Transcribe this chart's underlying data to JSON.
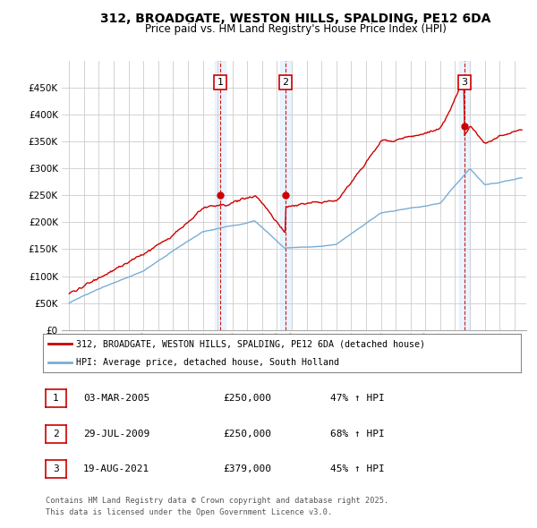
{
  "title_line1": "312, BROADGATE, WESTON HILLS, SPALDING, PE12 6DA",
  "title_line2": "Price paid vs. HM Land Registry's House Price Index (HPI)",
  "background_color": "#ffffff",
  "plot_bg_color": "#ffffff",
  "grid_color": "#cccccc",
  "red_line_color": "#cc0000",
  "blue_line_color": "#7aadd4",
  "annotation_box_edge_color": "#cc0000",
  "annotation_box_face_color": "#ffffff",
  "dashed_line_color": "#cc0000",
  "shaded_color": "#ddeeff",
  "ylim": [
    0,
    500000
  ],
  "yticks": [
    0,
    50000,
    100000,
    150000,
    200000,
    250000,
    300000,
    350000,
    400000,
    450000
  ],
  "annotations": [
    {
      "num": 1,
      "x_year": 2005.17,
      "price": 250000,
      "date": "03-MAR-2005",
      "pct": "47% ↑ HPI"
    },
    {
      "num": 2,
      "x_year": 2009.57,
      "price": 250000,
      "date": "29-JUL-2009",
      "pct": "68% ↑ HPI"
    },
    {
      "num": 3,
      "x_year": 2021.63,
      "price": 379000,
      "date": "19-AUG-2021",
      "pct": "45% ↑ HPI"
    }
  ],
  "legend_line1": "312, BROADGATE, WESTON HILLS, SPALDING, PE12 6DA (detached house)",
  "legend_line2": "HPI: Average price, detached house, South Holland",
  "footer_line1": "Contains HM Land Registry data © Crown copyright and database right 2025.",
  "footer_line2": "This data is licensed under the Open Government Licence v3.0.",
  "xmin": 1994.5,
  "xmax": 2025.8
}
